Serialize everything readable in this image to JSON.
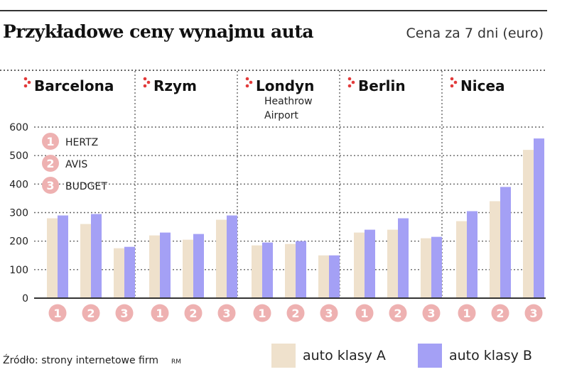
{
  "title": "Przykładowe ceny wynajmu auta",
  "subtitle": "Cena za 7 dni (euro)",
  "source": "Źródło: strony internetowe firm",
  "author": "RM",
  "colors": {
    "class_a": "#efe1cc",
    "class_b": "#a4a0f5",
    "marker": "#eeb1b1",
    "grid": "#666666",
    "dot": "#e23a3a"
  },
  "legend": {
    "class_a": "auto klasy A",
    "class_b": "auto klasy B"
  },
  "companies_legend": [
    {
      "num": "1",
      "name": "HERTZ"
    },
    {
      "num": "2",
      "name": "AVIS"
    },
    {
      "num": "3",
      "name": "BUDGET"
    }
  ],
  "chart_data": {
    "type": "bar",
    "title": "Przykładowe ceny wynajmu auta",
    "subtitle": "Cena za 7 dni (euro)",
    "ylim": [
      0,
      600
    ],
    "yticks": [
      0,
      100,
      200,
      300,
      400,
      500,
      600
    ],
    "grid": true,
    "groups": [
      {
        "city": "Barcelona",
        "sub": "",
        "a": [
          280,
          260,
          175
        ],
        "b": [
          290,
          295,
          180
        ]
      },
      {
        "city": "Rzym",
        "sub": "",
        "a": [
          220,
          205,
          275
        ],
        "b": [
          230,
          225,
          290
        ]
      },
      {
        "city": "Londyn",
        "sub": "Heathrow Airport",
        "a": [
          185,
          190,
          150
        ],
        "b": [
          195,
          200,
          150
        ]
      },
      {
        "city": "Berlin",
        "sub": "",
        "a": [
          230,
          240,
          210
        ],
        "b": [
          240,
          280,
          215
        ]
      },
      {
        "city": "Nicea",
        "sub": "",
        "a": [
          270,
          340,
          520
        ],
        "b": [
          305,
          390,
          560
        ]
      }
    ],
    "categories": [
      "1",
      "2",
      "3"
    ],
    "series": [
      {
        "name": "auto klasy A"
      },
      {
        "name": "auto klasy B"
      }
    ]
  }
}
